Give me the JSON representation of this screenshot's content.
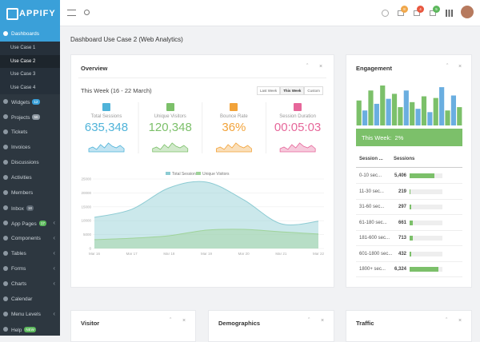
{
  "header": {
    "logo": "APPIFY",
    "badges": [
      {
        "text": "8",
        "color": "#f0a74a"
      },
      {
        "text": "4",
        "color": "#e8573f"
      },
      {
        "text": "5",
        "color": "#5cb85c"
      }
    ]
  },
  "sidebar": {
    "items": [
      {
        "label": "Dashboards",
        "children": [
          "Use Case 1",
          "Use Case 2",
          "Use Case 3",
          "Use Case 4"
        ],
        "active_child": 1
      },
      {
        "label": "Widgets",
        "badge": "12",
        "badge_color": "#3aa0d9"
      },
      {
        "label": "Projects",
        "badge": "56",
        "badge_color": "#8d98a2"
      },
      {
        "label": "Tickets"
      },
      {
        "label": "Invoices"
      },
      {
        "label": "Discussions"
      },
      {
        "label": "Activities"
      },
      {
        "label": "Members"
      },
      {
        "label": "Inbox",
        "badge": "18",
        "badge_color": "#5a6570"
      },
      {
        "label": "App Pages",
        "badge": "17",
        "badge_color": "#5cb85c",
        "expandable": true
      },
      {
        "label": "Components",
        "expandable": true
      },
      {
        "label": "Tables",
        "expandable": true
      },
      {
        "label": "Forms",
        "expandable": true
      },
      {
        "label": "Charts",
        "expandable": true
      },
      {
        "label": "Calendar"
      },
      {
        "label": "Menu Levels",
        "expandable": true
      },
      {
        "label": "Help",
        "badge": "NEW",
        "badge_color": "#5cb85c"
      }
    ]
  },
  "page_title": "Dashboard Use Case 2 (Web Analytics)",
  "overview": {
    "title": "Overview",
    "period": "This Week (16 - 22 March)",
    "tabs": [
      "Last Week",
      "This Week",
      "Custom"
    ],
    "active_tab": 1,
    "stats": [
      {
        "label": "Total Sessions",
        "value": "635,348",
        "color": "#4fb3d9"
      },
      {
        "label": "Unique Visitors",
        "value": "120,348",
        "color": "#7cc06a"
      },
      {
        "label": "Bounce Rate",
        "value": "36%",
        "color": "#f2a33a"
      },
      {
        "label": "Session Duration",
        "value": "00:05:03",
        "color": "#e6679a"
      }
    ],
    "chart": {
      "type": "area",
      "x": [
        "Mar 16",
        "Mar 17",
        "Mar 18",
        "Mar 19",
        "Mar 20",
        "Mar 21",
        "Mar 22"
      ],
      "series": [
        {
          "name": "Total Sessions",
          "color": "#8ccbd3",
          "values": [
            11200,
            14100,
            21800,
            23900,
            17500,
            8900,
            9800
          ]
        },
        {
          "name": "Unique Visitors",
          "color": "#9fd39a",
          "values": [
            3200,
            3700,
            4600,
            6600,
            6900,
            6000,
            5200
          ]
        }
      ],
      "ylim": [
        0,
        25000
      ],
      "yticks": [
        0,
        5000,
        10000,
        15000,
        20000,
        25000
      ]
    }
  },
  "engagement": {
    "title": "Engagement",
    "bars": {
      "type": "bar",
      "values": [
        30,
        18,
        42,
        26,
        48,
        32,
        38,
        22,
        42,
        28,
        20,
        35,
        16,
        33,
        46,
        18,
        36,
        22
      ],
      "colors": [
        "#7cc06a",
        "#6aaee0",
        "#7cc06a",
        "#6aaee0",
        "#7cc06a",
        "#6aaee0",
        "#7cc06a",
        "#7cc06a",
        "#6aaee0",
        "#7cc06a",
        "#6aaee0",
        "#7cc06a",
        "#6aaee0",
        "#7cc06a",
        "#6aaee0",
        "#7cc06a",
        "#6aaee0",
        "#7cc06a"
      ]
    },
    "summary_label": "This Week:",
    "summary_value": "2%",
    "columns": [
      "Session ...",
      "Sessions"
    ],
    "rows": [
      {
        "label": "0-10 sec...",
        "value": 5406,
        "value_label": "5,406"
      },
      {
        "label": "11-30 sec...",
        "value": 219,
        "value_label": "219"
      },
      {
        "label": "31-60 sec...",
        "value": 297,
        "value_label": "297"
      },
      {
        "label": "61-180 sec...",
        "value": 661,
        "value_label": "661"
      },
      {
        "label": "181-600 sec...",
        "value": 713,
        "value_label": "713"
      },
      {
        "label": "601-1800 sec...",
        "value": 432,
        "value_label": "432"
      },
      {
        "label": "1800+ sec...",
        "value": 6324,
        "value_label": "6,324"
      }
    ]
  },
  "bottom_cards": [
    "Visitor",
    "Demographics",
    "Traffic"
  ]
}
